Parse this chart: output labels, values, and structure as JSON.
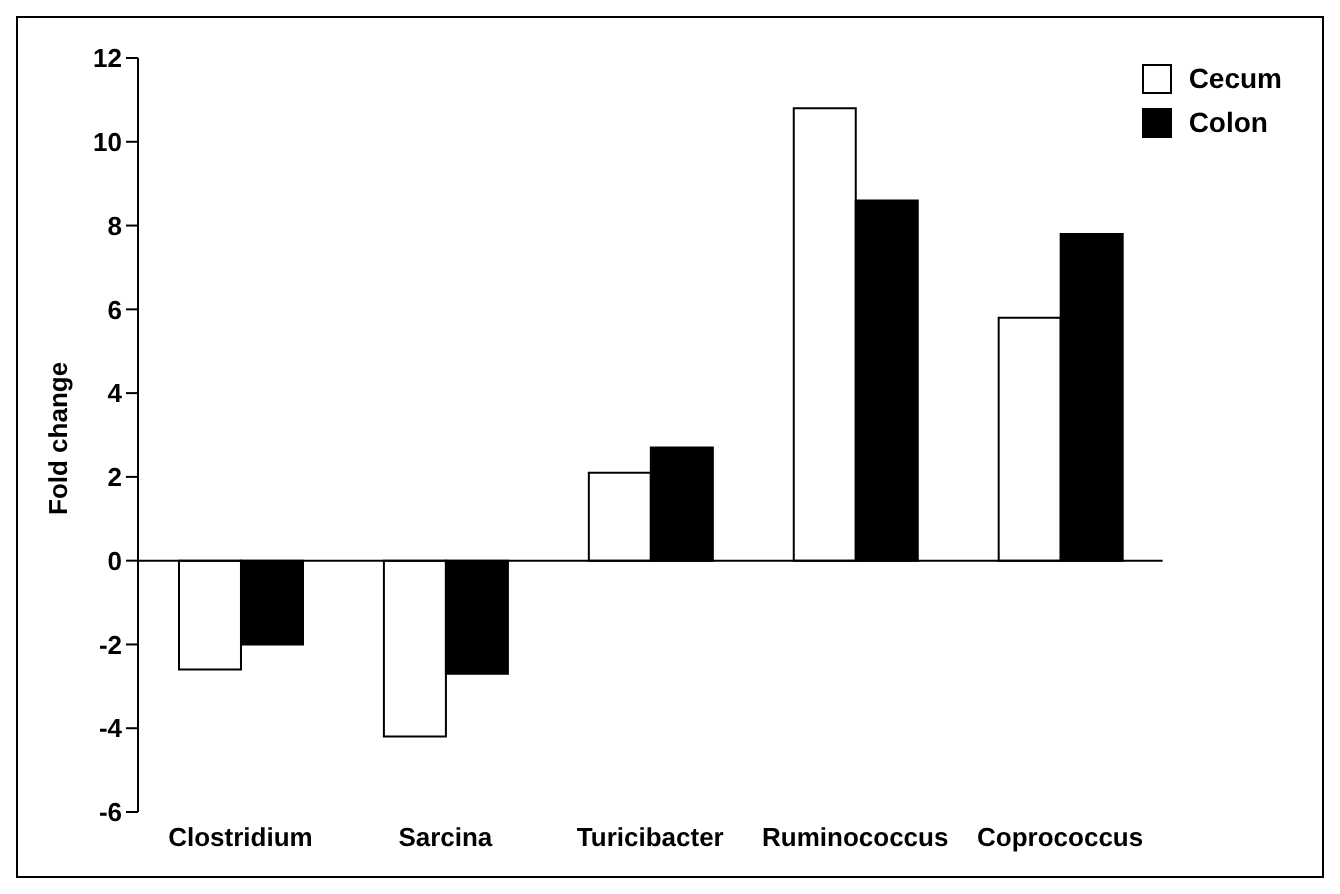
{
  "chart_data": {
    "type": "bar",
    "ylabel": "Fold change",
    "categories": [
      "Clostridium",
      "Sarcina",
      "Turicibacter",
      "Ruminococcus",
      "Coprococcus"
    ],
    "series": [
      {
        "name": "Cecum",
        "color": "#ffffff",
        "values": [
          -2.6,
          -4.2,
          2.1,
          10.8,
          5.8
        ]
      },
      {
        "name": "Colon",
        "color": "#000000",
        "values": [
          -2.0,
          -2.7,
          2.7,
          8.6,
          7.8
        ]
      }
    ],
    "ref_lines": [
      {
        "axis": "y",
        "value": 0,
        "color": "#000000"
      }
    ],
    "ylim": [
      -6,
      12
    ],
    "yticks": [
      -6,
      -4,
      -2,
      0,
      2,
      4,
      6,
      8,
      10,
      12
    ],
    "legend": "top right"
  }
}
